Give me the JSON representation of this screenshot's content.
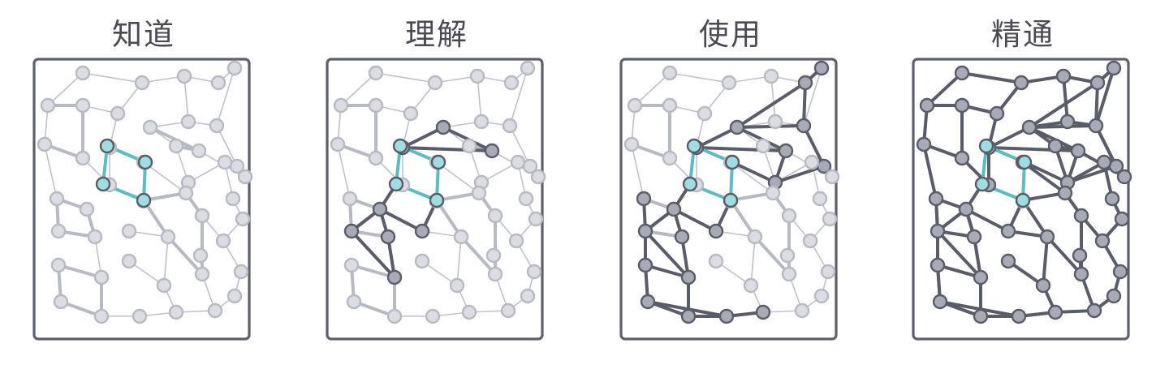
{
  "stages": [
    {
      "title": "知道",
      "level": 0
    },
    {
      "title": "理解",
      "level": 1
    },
    {
      "title": "使用",
      "level": 2
    },
    {
      "title": "精通",
      "level": 3
    }
  ],
  "colors": {
    "highlight": "#5bbcc2",
    "highlight_fill": "#9fdde0",
    "strong": "#5a5d68",
    "strong_fill": "#a8abb5",
    "faint_thick": "#b8bac2",
    "faint_thin": "#c0c2ca",
    "faint_fill": "#dcdde3",
    "frame": "#5d606b"
  }
}
